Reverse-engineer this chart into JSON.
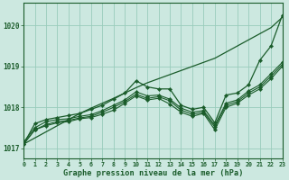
{
  "hours": [
    0,
    1,
    2,
    3,
    4,
    5,
    6,
    7,
    8,
    9,
    10,
    11,
    12,
    13,
    14,
    15,
    16,
    17,
    18,
    19,
    20,
    21,
    22,
    23
  ],
  "line_straight": [
    1017.1,
    1017.25,
    1017.4,
    1017.55,
    1017.7,
    1017.85,
    1017.98,
    1018.1,
    1018.22,
    1018.35,
    1018.48,
    1018.6,
    1018.7,
    1018.8,
    1018.9,
    1019.0,
    1019.1,
    1019.2,
    1019.35,
    1019.5,
    1019.65,
    1019.8,
    1019.95,
    1020.2
  ],
  "line_wiggly_high": [
    1017.1,
    1017.6,
    1017.7,
    1017.75,
    1017.8,
    1017.85,
    1017.95,
    1018.05,
    1018.2,
    1018.35,
    1018.65,
    1018.5,
    1018.45,
    1018.45,
    1018.05,
    1017.95,
    1018.0,
    1017.62,
    1018.3,
    1018.35,
    1018.55,
    1019.15,
    1019.5,
    1020.25
  ],
  "line_mid1": [
    1017.15,
    1017.5,
    1017.65,
    1017.7,
    1017.72,
    1017.78,
    1017.82,
    1017.92,
    1018.05,
    1018.18,
    1018.38,
    1018.28,
    1018.3,
    1018.2,
    1017.98,
    1017.88,
    1017.92,
    1017.56,
    1018.1,
    1018.18,
    1018.4,
    1018.55,
    1018.82,
    1019.1
  ],
  "line_mid2": [
    1017.1,
    1017.45,
    1017.58,
    1017.65,
    1017.68,
    1017.74,
    1017.78,
    1017.88,
    1018.0,
    1018.14,
    1018.32,
    1018.22,
    1018.26,
    1018.16,
    1017.93,
    1017.83,
    1017.88,
    1017.52,
    1018.05,
    1018.14,
    1018.35,
    1018.5,
    1018.76,
    1019.05
  ],
  "line_wiggly_low": [
    1017.1,
    1017.45,
    1017.55,
    1017.62,
    1017.65,
    1017.72,
    1017.75,
    1017.83,
    1017.93,
    1018.1,
    1018.28,
    1018.18,
    1018.22,
    1018.08,
    1017.88,
    1017.78,
    1017.85,
    1017.45,
    1018.0,
    1018.1,
    1018.3,
    1018.45,
    1018.7,
    1019.0
  ],
  "bg_color": "#cce8e0",
  "grid_color": "#99ccbb",
  "line_color": "#1a5c2a",
  "ylabel_ticks": [
    1017,
    1018,
    1019,
    1020
  ],
  "xlabel": "Graphe pression niveau de la mer (hPa)",
  "ylim": [
    1016.75,
    1020.55
  ],
  "xlim": [
    0,
    23
  ]
}
